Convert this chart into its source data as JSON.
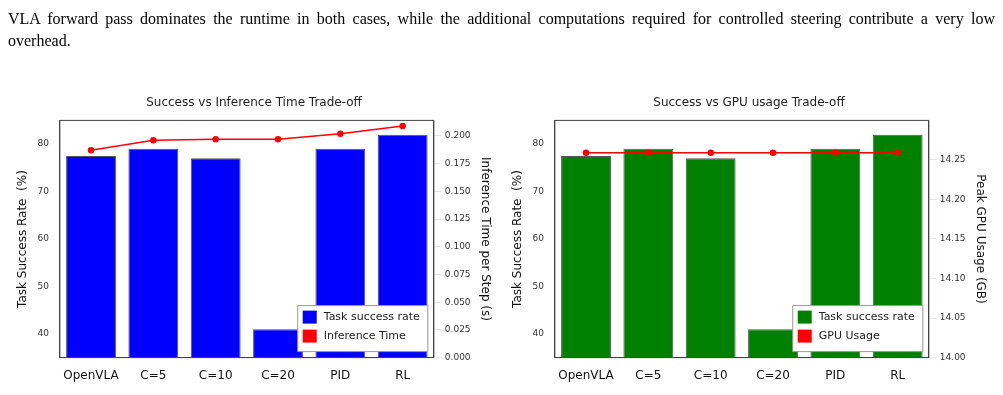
{
  "chart_data": [
    {
      "type": "bar",
      "title": "Success vs Inference Time Trade-off",
      "ylabel": "Task Success Rate  (%)",
      "y2label": "Inference Time per Step (s)",
      "annotations": [
        "VLA forward pass dominates the runtime in both cases, while the additional computations required for controlled steering contribute a very low overhead."
      ],
      "categories": [
        "OpenVLA",
        "C=5",
        "C=10",
        "C=20",
        "PID",
        "RL"
      ],
      "series": [
        {
          "name": "Task success rate",
          "color": "#0000ff",
          "values": [
            77.5,
            79,
            77,
            41,
            79,
            82
          ]
        },
        {
          "name": "Inference Time",
          "type": "line",
          "axis": "y2",
          "color": "#ff0000",
          "values": [
            0.187,
            0.196,
            0.197,
            0.197,
            0.202,
            0.209
          ]
        }
      ],
      "ylim": [
        35,
        85
      ],
      "yticks": [
        40,
        50,
        60,
        70,
        80
      ],
      "y2lim": [
        0,
        0.214
      ],
      "y2ticks": [
        {
          "value": 0,
          "label": "0.000"
        },
        {
          "value": 0.025,
          "label": "0.025"
        },
        {
          "value": 0.05,
          "label": "0.050"
        },
        {
          "value": 0.075,
          "label": "0.075"
        },
        {
          "value": 0.1,
          "label": "0.100"
        },
        {
          "value": 0.125,
          "label": "0.125"
        },
        {
          "value": 0.15,
          "label": "0.150"
        },
        {
          "value": 0.175,
          "label": "0.175"
        },
        {
          "value": 0.2,
          "label": "0.200"
        }
      ],
      "grid": false,
      "legend": "bottom right",
      "marker": "circle"
    },
    {
      "type": "bar",
      "title": "Success vs GPU usage Trade-off",
      "ylabel": "Task Success Rate  (%)",
      "y2label": "Peak GPU Usage (GB)",
      "categories": [
        "OpenVLA",
        "C=5",
        "C=10",
        "C=20",
        "PID",
        "RL"
      ],
      "series": [
        {
          "name": "Task success rate",
          "color": "#008000",
          "values": [
            77.5,
            79,
            77,
            41,
            79,
            82
          ]
        },
        {
          "name": "GPU Usage",
          "type": "line",
          "axis": "y2",
          "color": "#ff0000",
          "values": [
            14.259,
            14.259,
            14.259,
            14.259,
            14.259,
            14.259
          ]
        }
      ],
      "ylim": [
        35,
        85
      ],
      "yticks": [
        40,
        50,
        60,
        70,
        80
      ],
      "y2lim": [
        14,
        14.3
      ],
      "y2ticks": [
        {
          "value": 14,
          "label": "14.00"
        },
        {
          "value": 14.05,
          "label": "14.05"
        },
        {
          "value": 14.1,
          "label": "14.10"
        },
        {
          "value": 14.15,
          "label": "14.15"
        },
        {
          "value": 14.2,
          "label": "14.20"
        },
        {
          "value": 14.25,
          "label": "14.25"
        }
      ],
      "grid": false,
      "legend": "bottom right",
      "marker": "circle"
    }
  ]
}
